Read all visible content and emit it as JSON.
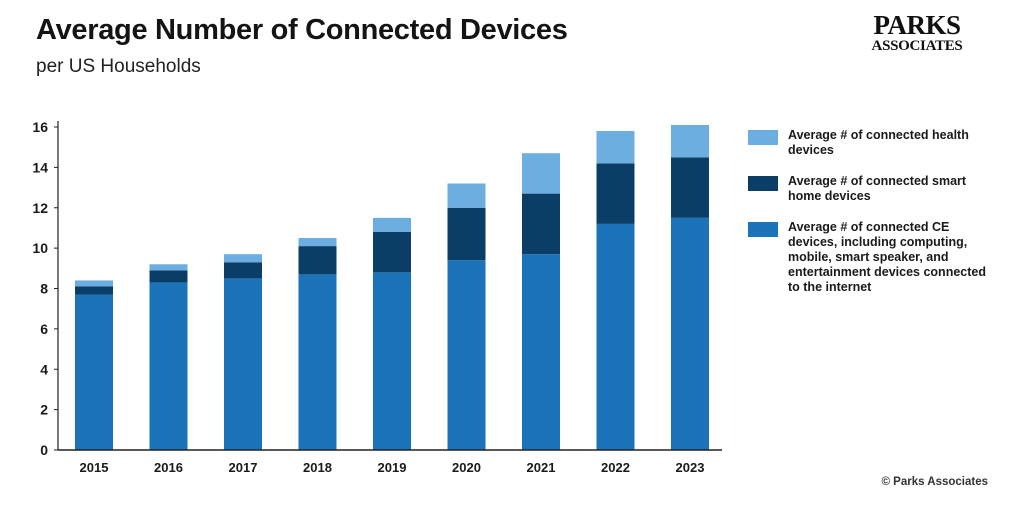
{
  "header": {
    "title": "Average Number of Connected Devices",
    "subtitle": "per US Households"
  },
  "logo": {
    "line1": "PARKS",
    "line2": "ASSOCIATES"
  },
  "footer": {
    "copyright": "© Parks Associates"
  },
  "colors": {
    "ce": "#1b73b9",
    "smart_home": "#0b3e66",
    "health": "#6caee0",
    "axis": "#222222"
  },
  "chart_data": {
    "type": "bar",
    "stacked": true,
    "categories": [
      "2015",
      "2016",
      "2017",
      "2018",
      "2019",
      "2020",
      "2021",
      "2022",
      "2023"
    ],
    "series": [
      {
        "key": "ce",
        "name": "Average # of connected CE devices, including computing, mobile, smart speaker, and entertainment devices connected to the internet",
        "values": [
          7.7,
          8.3,
          8.5,
          8.7,
          8.8,
          9.4,
          9.7,
          11.2,
          11.5
        ]
      },
      {
        "key": "smart_home",
        "name": "Average # of connected smart home devices",
        "values": [
          0.4,
          0.6,
          0.8,
          1.4,
          2.0,
          2.6,
          3.0,
          3.0,
          3.0
        ]
      },
      {
        "key": "health",
        "name": "Average # of connected health devices",
        "values": [
          0.3,
          0.3,
          0.4,
          0.4,
          0.7,
          1.2,
          2.0,
          1.6,
          1.6
        ]
      }
    ],
    "ylim": [
      0,
      16
    ],
    "yticks": [
      0,
      2,
      4,
      6,
      8,
      10,
      12,
      14,
      16
    ],
    "legend_order": [
      "health",
      "smart_home",
      "ce"
    ],
    "legend_position": "right",
    "grid": false
  }
}
